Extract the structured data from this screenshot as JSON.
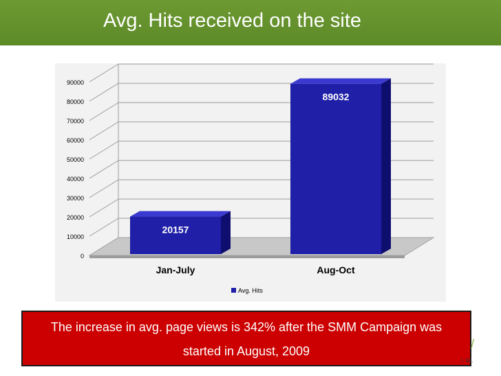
{
  "slide": {
    "title": "Avg. Hits received on the site",
    "caption_line1": "The increase in avg. page views is 342% after the SMM Campaign was",
    "caption_line2": "started in August, 2009",
    "footer": "t. ltd."
  },
  "colors": {
    "title_bar": "#5c8a27",
    "caption_bg": "#cc0000",
    "bar_front": "#1f1fa8",
    "bar_side": "#0e0e6e",
    "bar_top": "#3a3ad0"
  },
  "chart_data": {
    "type": "bar",
    "categories": [
      "Jan-July",
      "Aug-Oct"
    ],
    "series": [
      {
        "name": "Avg. Hits",
        "values": [
          20157,
          89032
        ]
      }
    ],
    "data_labels": [
      "20157",
      "89032"
    ],
    "y_ticks": [
      0,
      10000,
      20000,
      30000,
      40000,
      50000,
      60000,
      70000,
      80000,
      90000
    ],
    "ylim": [
      0,
      90000
    ],
    "grid": true,
    "legend": "bottom",
    "style": "3d"
  }
}
